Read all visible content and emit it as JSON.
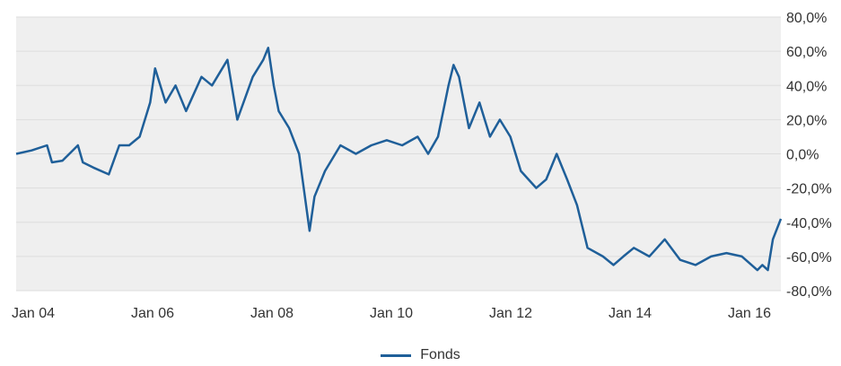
{
  "chart_data": {
    "type": "line",
    "title": "",
    "xlabel": "",
    "ylabel": "",
    "x_ticks": [
      "Jan 04",
      "Jan 06",
      "Jan 08",
      "Jan 10",
      "Jan 12",
      "Jan 14",
      "Jan 16"
    ],
    "y_ticks": [
      "80,0%",
      "60,0%",
      "40,0%",
      "20,0%",
      "0,0%",
      "-20,0%",
      "-40,0%",
      "-60,0%",
      "-80,0%"
    ],
    "ylim": [
      -80,
      80
    ],
    "xlim": [
      2004.0,
      2016.38
    ],
    "y_axis_position": "right",
    "grid": "horizontal",
    "legend_position": "bottom-center",
    "colors": {
      "series": "#1f5f99",
      "plot_background": "#efefef",
      "gridline": "#dddddd"
    },
    "series": [
      {
        "name": "Fonds",
        "x": [
          2004.0,
          2004.25,
          2004.5,
          2004.58,
          2004.75,
          2005.0,
          2005.08,
          2005.25,
          2005.5,
          2005.67,
          2005.83,
          2006.0,
          2006.17,
          2006.25,
          2006.42,
          2006.58,
          2006.75,
          2007.0,
          2007.17,
          2007.42,
          2007.58,
          2007.83,
          2008.0,
          2008.08,
          2008.17,
          2008.25,
          2008.42,
          2008.58,
          2008.75,
          2008.83,
          2009.0,
          2009.25,
          2009.5,
          2009.75,
          2010.0,
          2010.25,
          2010.5,
          2010.67,
          2010.83,
          2011.0,
          2011.08,
          2011.17,
          2011.33,
          2011.5,
          2011.67,
          2011.83,
          2012.0,
          2012.17,
          2012.42,
          2012.58,
          2012.75,
          2012.92,
          2013.08,
          2013.25,
          2013.5,
          2013.67,
          2013.83,
          2014.0,
          2014.25,
          2014.5,
          2014.75,
          2015.0,
          2015.25,
          2015.5,
          2015.75,
          2016.0,
          2016.08,
          2016.17,
          2016.25,
          2016.38
        ],
        "values": [
          0,
          2,
          5,
          -5,
          -4,
          5,
          -5,
          -8,
          -12,
          5,
          5,
          10,
          30,
          50,
          30,
          40,
          25,
          45,
          40,
          55,
          20,
          45,
          55,
          62,
          40,
          25,
          15,
          0,
          -45,
          -25,
          -10,
          5,
          0,
          5,
          8,
          5,
          10,
          0,
          10,
          40,
          52,
          45,
          15,
          30,
          10,
          20,
          10,
          -10,
          -20,
          -15,
          0,
          -15,
          -30,
          -55,
          -60,
          -65,
          -60,
          -55,
          -60,
          -50,
          -62,
          -65,
          -60,
          -58,
          -60,
          -68,
          -65,
          -68,
          -50,
          -38
        ]
      }
    ]
  }
}
